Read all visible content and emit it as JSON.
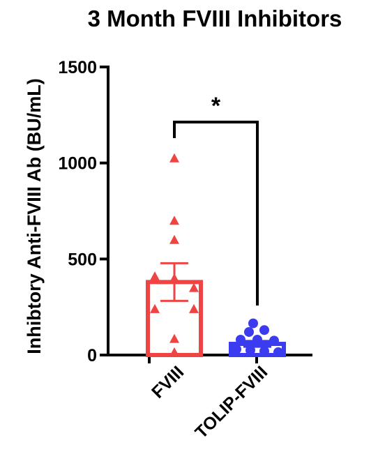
{
  "chart_data": {
    "type": "bar",
    "title": "3 Month FVIII Inhibitors",
    "xlabel": "",
    "ylabel": "Inhibtory Anti-FVIII Ab (BU/mL)",
    "ylim": [
      0,
      1500
    ],
    "yticks": [
      0,
      500,
      1000,
      1500
    ],
    "categories": [
      "FVIII",
      "TOLIP-FVIII"
    ],
    "values": [
      380,
      58
    ],
    "sem": [
      98,
      15
    ],
    "colors": [
      "#ef4444",
      "#3b3bef"
    ],
    "markers": [
      "triangle",
      "circle"
    ],
    "points": [
      [
        1025,
        700,
        600,
        410,
        400,
        350,
        240,
        240,
        85,
        15
      ],
      [
        165,
        130,
        120,
        80,
        80,
        75,
        30,
        25,
        20,
        15
      ]
    ],
    "significance": {
      "between": [
        "FVIII",
        "TOLIP-FVIII"
      ],
      "label": "*"
    },
    "grid": false,
    "legend": "none"
  }
}
